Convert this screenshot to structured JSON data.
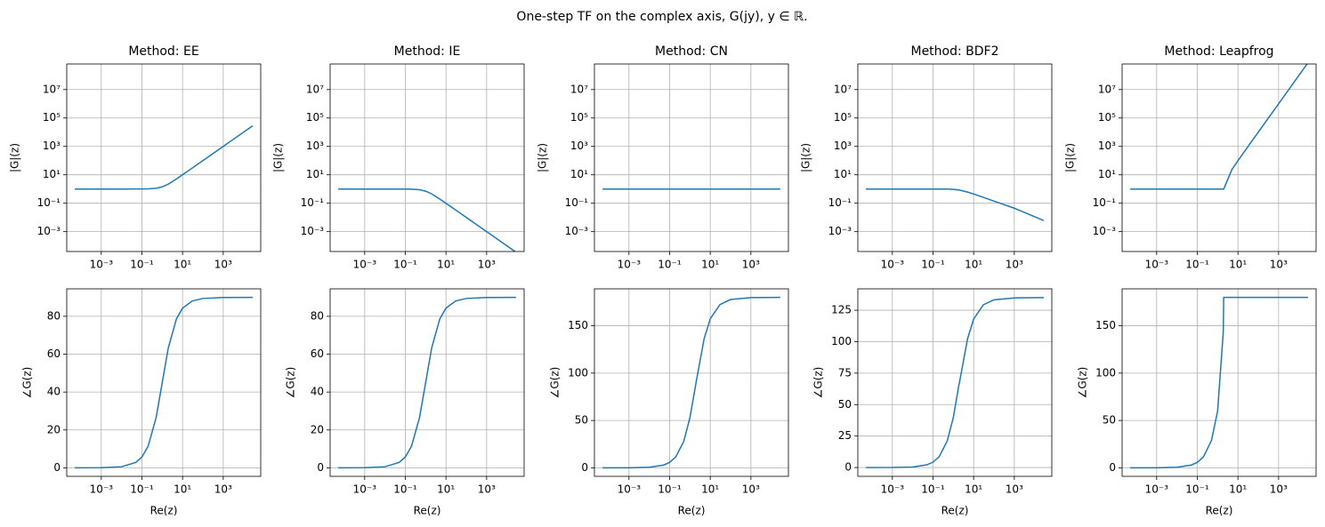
{
  "title": "One-step TF on the complex axis, G(jy), y ∈ ℝ.",
  "chart_data": [
    {
      "type": "line",
      "title": "Method: EE",
      "ylabel": "|G|(z)",
      "xlog": true,
      "ylog": true,
      "grid": true,
      "color": "#1f77b4",
      "x": [
        5e-05,
        0.001,
        0.01,
        0.05,
        0.1,
        0.2,
        0.5,
        1,
        1.9,
        2,
        5,
        10,
        30,
        100,
        1000,
        28000
      ],
      "values": [
        1,
        1,
        1,
        1.001,
        1.005,
        1.02,
        1.118,
        1.414,
        2.147,
        2.236,
        5.099,
        10.05,
        30.02,
        100,
        1000,
        28000
      ],
      "xlim": [
        2e-05,
        70000.0
      ],
      "ylim": [
        4e-05,
        630000000.0
      ],
      "xticks": [
        {
          "value": 0.001,
          "label": "10⁻³"
        },
        {
          "value": 0.1,
          "label": "10⁻¹"
        },
        {
          "value": 10,
          "label": "10¹"
        },
        {
          "value": 1000,
          "label": "10³"
        }
      ],
      "yticks": [
        {
          "value": 0.001,
          "label": "10⁻³"
        },
        {
          "value": 0.1,
          "label": "10⁻¹"
        },
        {
          "value": 10,
          "label": "10¹"
        },
        {
          "value": 1000,
          "label": "10³"
        },
        {
          "value": 100000,
          "label": "10⁵"
        },
        {
          "value": 10000000,
          "label": "10⁷"
        }
      ]
    },
    {
      "type": "line",
      "title": "Method: IE",
      "ylabel": "|G|(z)",
      "xlog": true,
      "ylog": true,
      "grid": true,
      "color": "#1f77b4",
      "x": [
        5e-05,
        0.001,
        0.01,
        0.05,
        0.1,
        0.2,
        0.5,
        1,
        1.9,
        2,
        5,
        10,
        30,
        100,
        1000,
        28000
      ],
      "values": [
        1,
        1,
        1,
        0.999,
        0.995,
        0.981,
        0.894,
        0.707,
        0.466,
        0.447,
        0.196,
        0.0995,
        0.0333,
        0.01,
        0.001,
        3.57e-05
      ],
      "xlim": [
        2e-05,
        70000.0
      ],
      "ylim": [
        4e-05,
        630000000.0
      ],
      "xticks": [
        {
          "value": 0.001,
          "label": "10⁻³"
        },
        {
          "value": 0.1,
          "label": "10⁻¹"
        },
        {
          "value": 10,
          "label": "10¹"
        },
        {
          "value": 1000,
          "label": "10³"
        }
      ],
      "yticks": [
        {
          "value": 0.001,
          "label": "10⁻³"
        },
        {
          "value": 0.1,
          "label": "10⁻¹"
        },
        {
          "value": 10,
          "label": "10¹"
        },
        {
          "value": 1000,
          "label": "10³"
        },
        {
          "value": 100000,
          "label": "10⁵"
        },
        {
          "value": 10000000,
          "label": "10⁷"
        }
      ]
    },
    {
      "type": "line",
      "title": "Method: CN",
      "ylabel": "|G|(z)",
      "xlog": true,
      "ylog": true,
      "grid": true,
      "color": "#1f77b4",
      "x": [
        5e-05,
        0.001,
        0.01,
        0.05,
        0.1,
        0.2,
        0.5,
        1,
        1.9,
        2,
        5,
        10,
        30,
        100,
        1000,
        28000
      ],
      "values": [
        1,
        1,
        1,
        1,
        1,
        1,
        1,
        1,
        1,
        1,
        1,
        1,
        1,
        1,
        1,
        1
      ],
      "xlim": [
        2e-05,
        70000.0
      ],
      "ylim": [
        4e-05,
        630000000.0
      ],
      "xticks": [
        {
          "value": 0.001,
          "label": "10⁻³"
        },
        {
          "value": 0.1,
          "label": "10⁻¹"
        },
        {
          "value": 10,
          "label": "10¹"
        },
        {
          "value": 1000,
          "label": "10³"
        }
      ],
      "yticks": [
        {
          "value": 0.001,
          "label": "10⁻³"
        },
        {
          "value": 0.1,
          "label": "10⁻¹"
        },
        {
          "value": 10,
          "label": "10¹"
        },
        {
          "value": 1000,
          "label": "10³"
        },
        {
          "value": 100000,
          "label": "10⁵"
        },
        {
          "value": 10000000,
          "label": "10⁷"
        }
      ]
    },
    {
      "type": "line",
      "title": "Method: BDF2",
      "ylabel": "|G|(z)",
      "xlog": true,
      "ylog": true,
      "grid": true,
      "color": "#1f77b4",
      "x": [
        5e-05,
        0.001,
        0.01,
        0.05,
        0.1,
        0.2,
        0.5,
        1,
        1.9,
        2,
        5,
        10,
        30,
        100,
        1000,
        28000
      ],
      "values": [
        1,
        1,
        1,
        1,
        0.999,
        0.998,
        0.985,
        0.946,
        0.852,
        0.841,
        0.61,
        0.443,
        0.258,
        0.141,
        0.0447,
        0.006
      ],
      "xlim": [
        2e-05,
        70000.0
      ],
      "ylim": [
        4e-05,
        630000000.0
      ],
      "xticks": [
        {
          "value": 0.001,
          "label": "10⁻³"
        },
        {
          "value": 0.1,
          "label": "10⁻¹"
        },
        {
          "value": 10,
          "label": "10¹"
        },
        {
          "value": 1000,
          "label": "10³"
        }
      ],
      "yticks": [
        {
          "value": 0.001,
          "label": "10⁻³"
        },
        {
          "value": 0.1,
          "label": "10⁻¹"
        },
        {
          "value": 10,
          "label": "10¹"
        },
        {
          "value": 1000,
          "label": "10³"
        },
        {
          "value": 100000,
          "label": "10⁵"
        },
        {
          "value": 10000000,
          "label": "10⁷"
        }
      ]
    },
    {
      "type": "line",
      "title": "Method: Leapfrog",
      "ylabel": "|G|(z)",
      "xlog": true,
      "ylog": true,
      "grid": true,
      "color": "#1f77b4",
      "x": [
        5e-05,
        0.001,
        0.01,
        0.05,
        0.1,
        0.2,
        0.5,
        1,
        1.9,
        2,
        5,
        10,
        30,
        100,
        1000,
        28000
      ],
      "values": [
        1,
        1,
        1,
        1,
        1,
        1,
        1,
        1,
        1,
        1,
        22.96,
        98,
        898,
        9998,
        1000000,
        784000000
      ],
      "xlim": [
        2e-05,
        70000.0
      ],
      "ylim": [
        4e-05,
        630000000.0
      ],
      "xticks": [
        {
          "value": 0.001,
          "label": "10⁻³"
        },
        {
          "value": 0.1,
          "label": "10⁻¹"
        },
        {
          "value": 10,
          "label": "10¹"
        },
        {
          "value": 1000,
          "label": "10³"
        }
      ],
      "yticks": [
        {
          "value": 0.001,
          "label": "10⁻³"
        },
        {
          "value": 0.1,
          "label": "10⁻¹"
        },
        {
          "value": 10,
          "label": "10¹"
        },
        {
          "value": 1000,
          "label": "10³"
        },
        {
          "value": 100000,
          "label": "10⁵"
        },
        {
          "value": 10000000,
          "label": "10⁷"
        }
      ]
    },
    {
      "type": "line",
      "xlabel": "Re(z)",
      "ylabel": "∠G(z)",
      "xlog": true,
      "ylog": false,
      "grid": true,
      "color": "#1f77b4",
      "x": [
        5e-05,
        0.001,
        0.01,
        0.05,
        0.1,
        0.2,
        0.5,
        1,
        1.9,
        2,
        5,
        10,
        30,
        100,
        1000,
        28000
      ],
      "values": [
        0.003,
        0.057,
        0.573,
        2.86,
        5.71,
        11.31,
        26.57,
        45,
        62.24,
        63.43,
        78.69,
        84.29,
        88.09,
        89.43,
        89.94,
        90
      ],
      "xlim": [
        2e-05,
        70000.0
      ],
      "ylim": [
        -4.5,
        94.5
      ],
      "xticks": [
        {
          "value": 0.001,
          "label": "10⁻³"
        },
        {
          "value": 0.1,
          "label": "10⁻¹"
        },
        {
          "value": 10,
          "label": "10¹"
        },
        {
          "value": 1000,
          "label": "10³"
        }
      ],
      "yticks": [
        0,
        20,
        40,
        60,
        80
      ]
    },
    {
      "type": "line",
      "xlabel": "Re(z)",
      "ylabel": "∠G(z)",
      "xlog": true,
      "ylog": false,
      "grid": true,
      "color": "#1f77b4",
      "x": [
        5e-05,
        0.001,
        0.01,
        0.05,
        0.1,
        0.2,
        0.5,
        1,
        1.9,
        2,
        5,
        10,
        30,
        100,
        1000,
        28000
      ],
      "values": [
        0.003,
        0.057,
        0.573,
        2.86,
        5.71,
        11.31,
        26.57,
        45,
        62.24,
        63.43,
        78.69,
        84.29,
        88.09,
        89.43,
        89.94,
        90
      ],
      "xlim": [
        2e-05,
        70000.0
      ],
      "ylim": [
        -4.5,
        94.5
      ],
      "xticks": [
        {
          "value": 0.001,
          "label": "10⁻³"
        },
        {
          "value": 0.1,
          "label": "10⁻¹"
        },
        {
          "value": 10,
          "label": "10¹"
        },
        {
          "value": 1000,
          "label": "10³"
        }
      ],
      "yticks": [
        0,
        20,
        40,
        60,
        80
      ]
    },
    {
      "type": "line",
      "xlabel": "Re(z)",
      "ylabel": "∠G(z)",
      "xlog": true,
      "ylog": false,
      "grid": true,
      "color": "#1f77b4",
      "x": [
        5e-05,
        0.001,
        0.01,
        0.05,
        0.1,
        0.2,
        0.5,
        1,
        1.9,
        2,
        5,
        10,
        30,
        100,
        1000,
        28000
      ],
      "values": [
        0.003,
        0.057,
        0.573,
        2.86,
        5.72,
        11.42,
        28.07,
        53.13,
        87.06,
        90,
        136.4,
        157.38,
        172.37,
        177.71,
        179.77,
        179.99
      ],
      "xlim": [
        2e-05,
        70000.0
      ],
      "ylim": [
        -9,
        189
      ],
      "xticks": [
        {
          "value": 0.001,
          "label": "10⁻³"
        },
        {
          "value": 0.1,
          "label": "10⁻¹"
        },
        {
          "value": 10,
          "label": "10¹"
        },
        {
          "value": 1000,
          "label": "10³"
        }
      ],
      "yticks": [
        0,
        50,
        100,
        150
      ]
    },
    {
      "type": "line",
      "xlabel": "Re(z)",
      "ylabel": "∠G(z)",
      "xlog": true,
      "ylog": false,
      "grid": true,
      "color": "#1f77b4",
      "x": [
        5e-05,
        0.001,
        0.01,
        0.05,
        0.1,
        0.2,
        0.5,
        1,
        1.9,
        2,
        5,
        10,
        30,
        100,
        1000,
        28000
      ],
      "values": [
        0.002,
        0.043,
        0.43,
        2.15,
        4.29,
        8.57,
        21.05,
        39.85,
        66.05,
        67.5,
        102.3,
        118,
        129.3,
        133.3,
        134.8,
        135
      ],
      "xlim": [
        2e-05,
        70000.0
      ],
      "ylim": [
        -7,
        142
      ],
      "xticks": [
        {
          "value": 0.001,
          "label": "10⁻³"
        },
        {
          "value": 0.1,
          "label": "10⁻¹"
        },
        {
          "value": 10,
          "label": "10¹"
        },
        {
          "value": 1000,
          "label": "10³"
        }
      ],
      "yticks": [
        0,
        25,
        50,
        75,
        100,
        125
      ]
    },
    {
      "type": "line",
      "xlabel": "Re(z)",
      "ylabel": "∠G(z)",
      "xlog": true,
      "ylog": false,
      "grid": true,
      "color": "#1f77b4",
      "x": [
        5e-05,
        0.001,
        0.01,
        0.05,
        0.1,
        0.2,
        0.5,
        1,
        1.9,
        2,
        5,
        10,
        30,
        100,
        1000,
        28000
      ],
      "values": [
        0.003,
        0.057,
        0.573,
        2.87,
        5.73,
        11.48,
        28.96,
        60,
        143.6,
        180,
        180,
        180,
        180,
        180,
        180,
        180
      ],
      "xlim": [
        2e-05,
        70000.0
      ],
      "ylim": [
        -9,
        189
      ],
      "xticks": [
        {
          "value": 0.001,
          "label": "10⁻³"
        },
        {
          "value": 0.1,
          "label": "10⁻¹"
        },
        {
          "value": 10,
          "label": "10¹"
        },
        {
          "value": 1000,
          "label": "10³"
        }
      ],
      "yticks": [
        0,
        50,
        100,
        150
      ]
    }
  ]
}
